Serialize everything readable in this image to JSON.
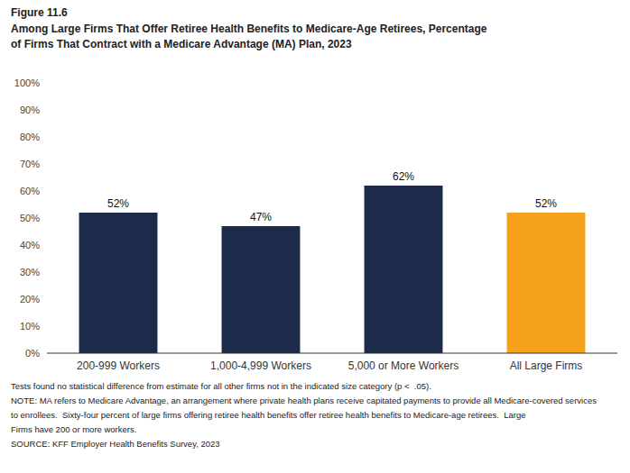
{
  "chart_data": {
    "type": "bar",
    "title": "Figure 11.6",
    "subtitle": [
      "Among Large Firms That Offer Retiree Health Benefits to Medicare-Age Retirees, Percentage",
      "of Firms That Contract with a Medicare Advantage (MA) Plan, 2023"
    ],
    "categories": [
      "200-999 Workers",
      "1,000-4,999 Workers",
      "5,000 or More Workers",
      "All Large Firms"
    ],
    "values": [
      52,
      47,
      62,
      52
    ],
    "value_labels": [
      "52%",
      "47%",
      "62%",
      "52%"
    ],
    "colors": [
      "#1c2b4a",
      "#1c2b4a",
      "#1c2b4a",
      "#f5a11c"
    ],
    "ylim": [
      0,
      100
    ],
    "yticks": [
      {
        "value": 0,
        "label": "0%"
      },
      {
        "value": 10,
        "label": "10%"
      },
      {
        "value": 20,
        "label": "20%"
      },
      {
        "value": 30,
        "label": "30%"
      },
      {
        "value": 40,
        "label": "40%"
      },
      {
        "value": 50,
        "label": "50%"
      },
      {
        "value": 60,
        "label": "60%"
      },
      {
        "value": 70,
        "label": "70%"
      },
      {
        "value": 80,
        "label": "80%"
      },
      {
        "value": 90,
        "label": "90%"
      },
      {
        "value": 100,
        "label": "100%"
      }
    ],
    "data_labels": true,
    "grid": false,
    "annotations": [
      "Tests found no statistical difference from estimate for all other firms not in the indicated size category (p <  .05).",
      "NOTE: MA refers to Medicare Advantage, an arrangement where private health plans receive capitated payments to provide all Medicare-covered services",
      "to enrollees.  Sixty-four percent of large firms offering retiree health benefits offer retiree health benefits to Medicare-age retirees.  Large",
      "Firms have 200 or more workers.",
      "SOURCE: KFF Employer Health Benefits Survey, 2023"
    ]
  }
}
